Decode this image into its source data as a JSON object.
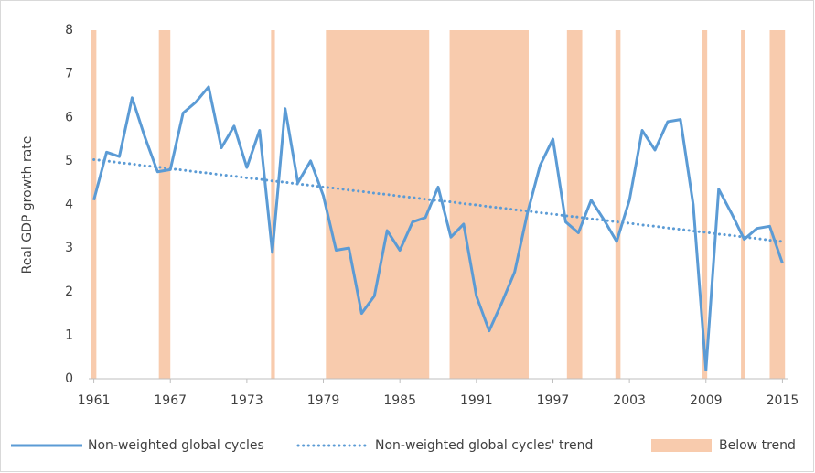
{
  "chart_data": {
    "type": "line",
    "y_label": "Real GDP growth rate",
    "x": [
      1961,
      1962,
      1963,
      1964,
      1965,
      1966,
      1967,
      1968,
      1969,
      1970,
      1971,
      1972,
      1973,
      1974,
      1975,
      1976,
      1977,
      1978,
      1979,
      1980,
      1981,
      1982,
      1983,
      1984,
      1985,
      1986,
      1987,
      1988,
      1989,
      1990,
      1991,
      1992,
      1993,
      1994,
      1995,
      1996,
      1997,
      1998,
      1999,
      2000,
      2001,
      2002,
      2003,
      2004,
      2005,
      2006,
      2007,
      2008,
      2009,
      2010,
      2011,
      2012,
      2013,
      2014,
      2015
    ],
    "series": [
      {
        "name": "Non-weighted global cycles",
        "color": "#5b9bd5",
        "style": "solid",
        "values": [
          4.1,
          5.2,
          5.1,
          6.45,
          5.55,
          4.75,
          4.8,
          6.1,
          6.35,
          6.7,
          5.3,
          5.8,
          4.85,
          5.7,
          2.9,
          6.2,
          4.5,
          5.0,
          4.2,
          2.95,
          3.0,
          1.5,
          1.9,
          3.4,
          2.95,
          3.6,
          3.7,
          4.4,
          3.25,
          3.55,
          1.9,
          1.1,
          1.75,
          2.45,
          3.8,
          4.9,
          5.5,
          3.6,
          3.35,
          4.1,
          3.65,
          3.15,
          4.1,
          5.7,
          5.25,
          5.9,
          5.95,
          4.0,
          0.2,
          4.35,
          3.8,
          3.2,
          3.45,
          3.5,
          2.65
        ]
      },
      {
        "name": "Non-weighted global cycles' trend",
        "color": "#5b9bd5",
        "style": "dotted",
        "values": [
          5.03,
          5.0,
          4.96,
          4.93,
          4.89,
          4.86,
          4.82,
          4.79,
          4.75,
          4.72,
          4.68,
          4.65,
          4.61,
          4.58,
          4.54,
          4.51,
          4.47,
          4.44,
          4.4,
          4.37,
          4.33,
          4.3,
          4.26,
          4.23,
          4.19,
          4.16,
          4.12,
          4.09,
          4.06,
          4.02,
          3.99,
          3.95,
          3.92,
          3.88,
          3.85,
          3.81,
          3.78,
          3.74,
          3.71,
          3.67,
          3.64,
          3.6,
          3.57,
          3.53,
          3.5,
          3.46,
          3.43,
          3.39,
          3.36,
          3.32,
          3.29,
          3.25,
          3.22,
          3.18,
          3.15
        ]
      }
    ],
    "bands": {
      "name": "Below trend",
      "color": "#f8cbad",
      "spans": [
        [
          1960.8,
          1961.2
        ],
        [
          1966.1,
          1967.0
        ],
        [
          1974.9,
          1975.2
        ],
        [
          1979.2,
          1987.3
        ],
        [
          1988.9,
          1995.1
        ],
        [
          1998.1,
          1999.3
        ],
        [
          2001.9,
          2002.3
        ],
        [
          2008.7,
          2009.1
        ],
        [
          2011.75,
          2012.1
        ],
        [
          2014.0,
          2015.2
        ]
      ]
    },
    "xlim": [
      1960.6,
      2015.4
    ],
    "xticks": [
      1961,
      1967,
      1973,
      1979,
      1985,
      1991,
      1997,
      2003,
      2009,
      2015
    ],
    "ylim": [
      0,
      8
    ],
    "yticks": [
      0,
      1,
      2,
      3,
      4,
      5,
      6,
      7,
      8
    ],
    "grid": false,
    "legend": "bottom"
  }
}
